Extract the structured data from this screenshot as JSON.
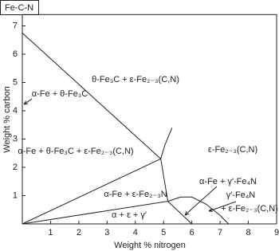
{
  "chart_data": {
    "type": "phase-diagram",
    "title": "Fe-C-N",
    "x_label": "Weight % nitrogen",
    "y_label": "Weight % carbon",
    "xlim": [
      0,
      9
    ],
    "ylim": [
      0,
      7.4
    ],
    "xticks": [
      1,
      2,
      3,
      4,
      5,
      6,
      7,
      8,
      9
    ],
    "yticks": [
      1,
      2,
      3,
      4,
      5,
      6,
      7
    ],
    "color": "#222222",
    "boundaries": [
      {
        "x": [
          0,
          4.9
        ],
        "y": [
          6.75,
          2.3
        ]
      },
      {
        "x": [
          0,
          4.9
        ],
        "y": [
          0,
          2.3
        ]
      },
      {
        "x": [
          4.9,
          5.05,
          5.3
        ],
        "y": [
          2.3,
          2.8,
          3.4
        ]
      },
      {
        "x": [
          4.9,
          5.15
        ],
        "y": [
          2.3,
          0.8
        ]
      },
      {
        "x": [
          0,
          5.15,
          6.0
        ],
        "y": [
          0,
          0.8,
          0
        ]
      },
      {
        "x": [
          5.15,
          5.6,
          6.0,
          6.5,
          7.0,
          7.3
        ],
        "y": [
          0.8,
          0.95,
          0.95,
          0.7,
          0.3,
          0
        ]
      }
    ],
    "annotations": [
      "θ-Fe₃C + ε-Fe₂₋₃(C,N)",
      "α-Fe + θ-Fe₃C",
      "α-Fe + θ-Fe₃C + ε-Fe₂₋₃(C,N)",
      "ε-Fe₂₋₃(C,N)",
      "α-Fe + ε-Fe₂₋₃N",
      "α + ε + γ′",
      "α-Fe + γ′-Fe₄N",
      "γ′-Fe₄N",
      "+ ε-Fe₂₋₃(C,N)"
    ]
  }
}
